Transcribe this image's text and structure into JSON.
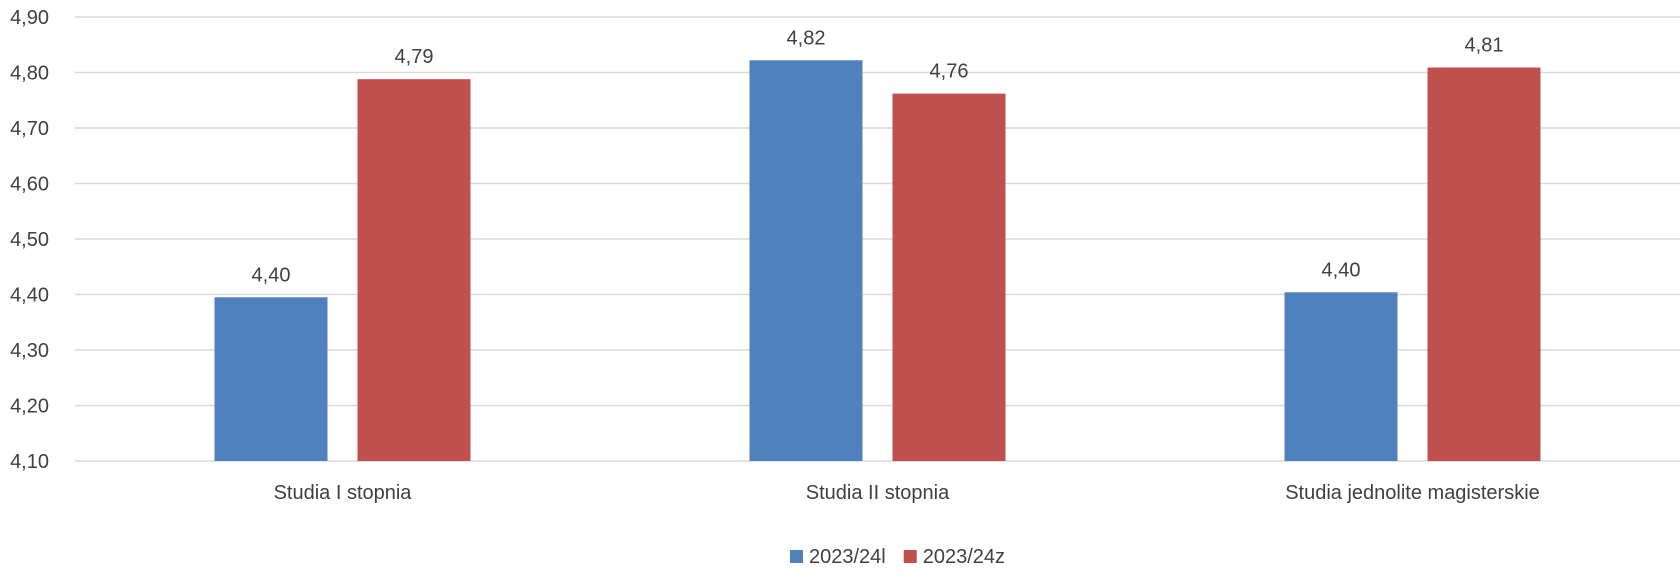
{
  "chart_data": {
    "type": "bar",
    "categories": [
      "Studia I stopnia",
      "Studia II stopnia",
      "Studia jednolite magisterskie"
    ],
    "series": [
      {
        "name": "2023/24l",
        "values": [
          4.395,
          4.822,
          4.404
        ],
        "labels": [
          "4,40",
          "4,82",
          "4,40"
        ],
        "color": "#4f81bd"
      },
      {
        "name": "2023/24z",
        "values": [
          4.788,
          4.762,
          4.809
        ],
        "labels": [
          "4,79",
          "4,76",
          "4,81"
        ],
        "color": "#c0504d"
      }
    ],
    "yticks": [
      4.1,
      4.2,
      4.3,
      4.4,
      4.5,
      4.6,
      4.7,
      4.8,
      4.9
    ],
    "ytick_labels": [
      "4,10",
      "4,20",
      "4,30",
      "4,40",
      "4,50",
      "4,60",
      "4,70",
      "4,80",
      "4,90"
    ],
    "ylim": [
      4.1,
      4.9
    ],
    "title": "",
    "xlabel": "",
    "ylabel": "",
    "grid": true,
    "legend_position": "bottom-center"
  }
}
